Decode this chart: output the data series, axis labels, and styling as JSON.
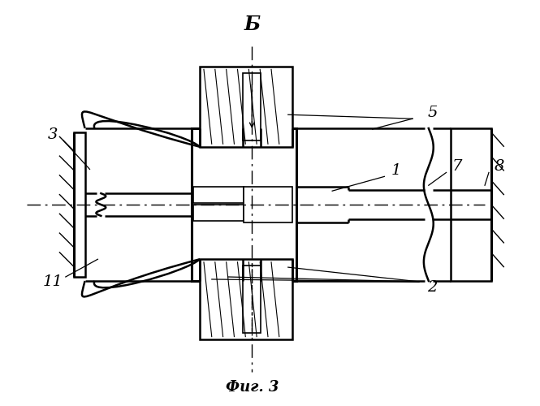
{
  "bg_color": "#ffffff",
  "title": "Фиг. 3",
  "label_B": "Б",
  "figsize": [
    6.65,
    5.0
  ],
  "dpi": 100
}
